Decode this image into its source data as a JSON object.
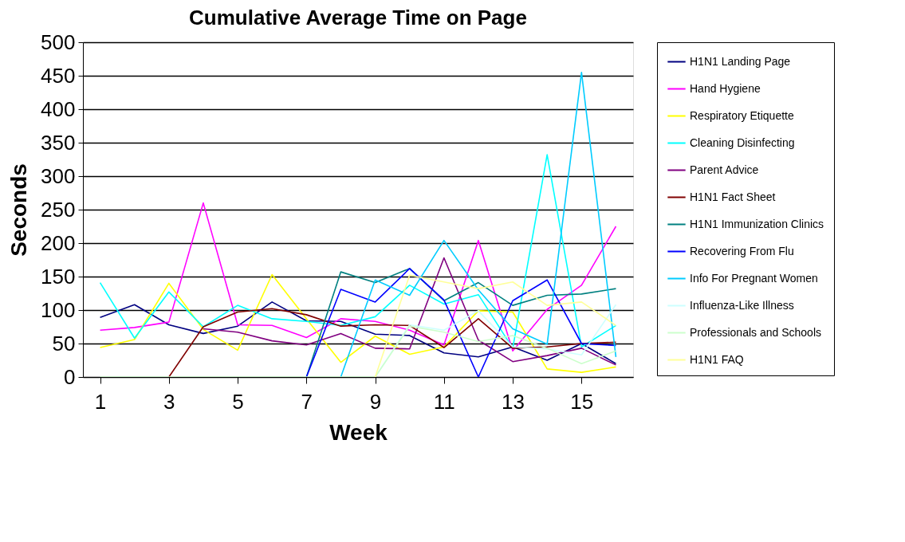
{
  "chart_data": {
    "type": "line",
    "title": "Cumulative Average Time on Page",
    "xlabel": "Week",
    "ylabel": "Seconds",
    "x": [
      1,
      2,
      3,
      4,
      5,
      6,
      7,
      8,
      9,
      10,
      11,
      12,
      13,
      14,
      15,
      16
    ],
    "xlim": [
      0.5,
      16.5
    ],
    "xticks": [
      1,
      3,
      5,
      7,
      9,
      11,
      13,
      15
    ],
    "ylim": [
      0,
      500
    ],
    "yticks": [
      0,
      50,
      100,
      150,
      200,
      250,
      300,
      350,
      400,
      450,
      500
    ],
    "grid": "y",
    "legend": "right",
    "marker": "none",
    "line_style": "solid",
    "series": [
      {
        "name": "H1N1 Landing Page",
        "color": "#000080",
        "values": [
          89,
          108,
          78,
          65,
          76,
          112,
          84,
          83,
          64,
          62,
          36,
          30,
          45,
          25,
          50,
          20
        ]
      },
      {
        "name": "Hand Hygiene",
        "color": "#ff00ff",
        "values": [
          70,
          74,
          82,
          260,
          78,
          77,
          59,
          87,
          83,
          70,
          48,
          204,
          39,
          101,
          137,
          225
        ]
      },
      {
        "name": "Respiratory Etiquette",
        "color": "#ffff00",
        "values": [
          44,
          56,
          140,
          71,
          40,
          153,
          87,
          22,
          61,
          34,
          45,
          99,
          97,
          12,
          7,
          15
        ]
      },
      {
        "name": "Cleaning Disinfecting",
        "color": "#00ffff",
        "values": [
          141,
          58,
          127,
          75,
          107,
          87,
          83,
          77,
          90,
          137,
          109,
          123,
          43,
          332,
          45,
          77
        ]
      },
      {
        "name": "Parent Advice",
        "color": "#800080",
        "values": [
          null,
          null,
          null,
          72,
          67,
          54,
          48,
          65,
          43,
          42,
          178,
          55,
          23,
          32,
          43,
          18
        ]
      },
      {
        "name": "H1N1 Fact Sheet",
        "color": "#800000",
        "values": [
          null,
          null,
          0,
          75,
          97,
          102,
          93,
          76,
          78,
          77,
          44,
          87,
          43,
          45,
          50,
          52
        ]
      },
      {
        "name": "H1N1 Immunization Clinics",
        "color": "#008080",
        "values": [
          null,
          null,
          null,
          null,
          null,
          null,
          0,
          157,
          141,
          162,
          114,
          141,
          107,
          122,
          124,
          132
        ]
      },
      {
        "name": "Recovering From Flu",
        "color": "#0000ff",
        "values": [
          null,
          null,
          null,
          null,
          null,
          null,
          0,
          131,
          112,
          162,
          115,
          0,
          114,
          145,
          50,
          47
        ]
      },
      {
        "name": "Info For Pregnant Women",
        "color": "#00ccff",
        "values": [
          null,
          null,
          null,
          null,
          null,
          null,
          null,
          0,
          145,
          122,
          204,
          130,
          72,
          49,
          455,
          30
        ]
      },
      {
        "name": "Influenza-Like Illness",
        "color": "#ccffff",
        "values": [
          null,
          null,
          null,
          null,
          null,
          null,
          null,
          null,
          0,
          78,
          70,
          99,
          45,
          42,
          33,
          108
        ]
      },
      {
        "name": "Professionals and Schools",
        "color": "#ccffcc",
        "values": [
          0,
          0,
          0,
          0,
          0,
          0,
          0,
          0,
          0,
          76,
          67,
          53,
          62,
          43,
          20,
          39
        ]
      },
      {
        "name": "H1N1 FAQ",
        "color": "#ffff99",
        "values": [
          null,
          null,
          null,
          null,
          null,
          null,
          null,
          null,
          0,
          152,
          142,
          132,
          142,
          107,
          112,
          77
        ]
      }
    ]
  }
}
